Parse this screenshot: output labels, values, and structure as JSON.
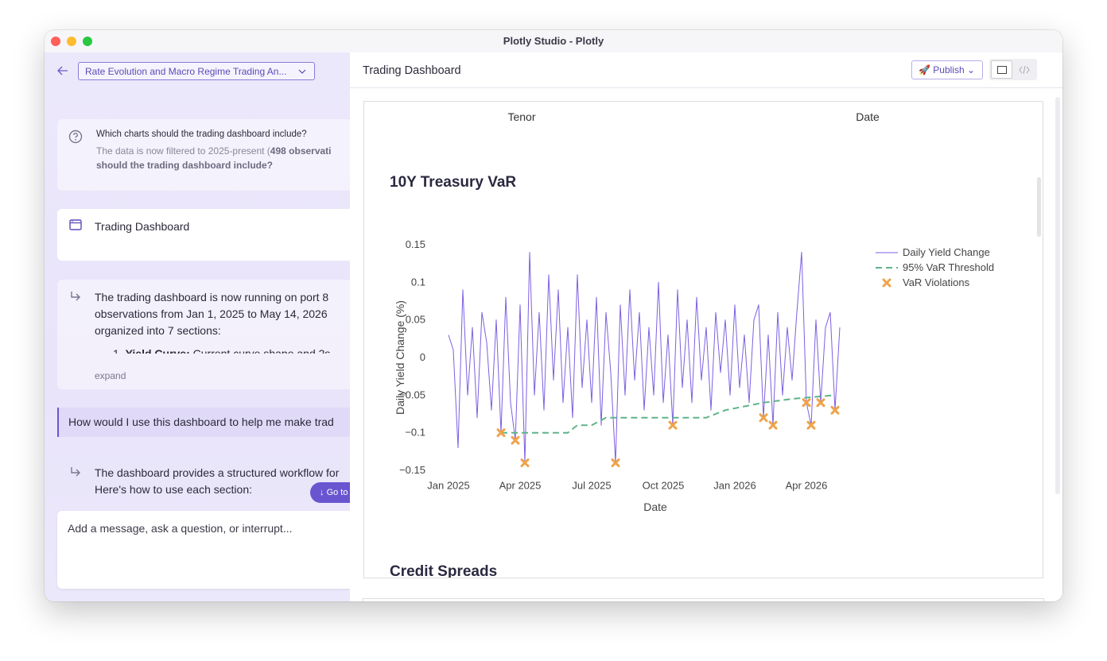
{
  "window": {
    "title": "Plotly Studio - Plotly"
  },
  "sidebar": {
    "project": "Rate Evolution and Macro Regime Trading An...",
    "question": {
      "title": "Which charts should the trading dashboard include?",
      "line1": "The data is now filtered to 2025-present (",
      "line1_bold": "498 observati",
      "line2_bold": "should the trading dashboard include?"
    },
    "artifact": "Trading Dashboard",
    "reply1": {
      "lines": [
        "The trading dashboard is now running on port 8",
        "observations from Jan 1, 2025 to May 14, 2026",
        "organized into 7 sections:"
      ],
      "list_number": "1.",
      "list_bold": "Yield Curve:",
      "list_text": " Current curve shape and 2s",
      "expand": "expand"
    },
    "user_message": "How would I use this dashboard to help me make trad",
    "reply2": [
      "The dashboard provides a structured workflow for",
      "Here's how to use each section:"
    ],
    "go_button": "Go to",
    "input_placeholder": "Add a message, ask a question, or interrupt..."
  },
  "main": {
    "title": "Trading Dashboard",
    "publish": "Publish",
    "filters": [
      "Tenor",
      "Date"
    ],
    "next_section": "Credit Spreads"
  },
  "chart_data": {
    "type": "line",
    "title": "10Y Treasury VaR",
    "x_label": "Date",
    "y_label": "Daily Yield Change (%)",
    "xlim": [
      -0.1,
      16.5
    ],
    "xticks": [
      {
        "value": 0,
        "label": "Jan 2025"
      },
      {
        "value": 3,
        "label": "Apr 2025"
      },
      {
        "value": 6,
        "label": "Jul 2025"
      },
      {
        "value": 9,
        "label": "Oct 2025"
      },
      {
        "value": 12,
        "label": "Jan 2026"
      },
      {
        "value": 15,
        "label": "Apr 2026"
      }
    ],
    "ylim": [
      -0.16,
      0.16
    ],
    "yticks": [
      0.15,
      0.1,
      0.05,
      0,
      {
        "value": -0.05,
        "label": "−0.05"
      },
      {
        "value": -0.1,
        "label": "−0.1"
      },
      {
        "value": -0.15,
        "label": "−0.15"
      }
    ],
    "grid": false,
    "legend": "right",
    "series": [
      {
        "name": "Daily Yield Change",
        "color": "#7d5fe0",
        "mode": "line",
        "x": [
          0,
          0.2,
          0.4,
          0.6,
          0.8,
          1,
          1.2,
          1.4,
          1.6,
          1.8,
          2,
          2.2,
          2.4,
          2.6,
          2.8,
          3,
          3.2,
          3.4,
          3.6,
          3.8,
          4,
          4.2,
          4.4,
          4.6,
          4.8,
          5,
          5.2,
          5.4,
          5.6,
          5.8,
          6,
          6.2,
          6.4,
          6.6,
          6.8,
          7,
          7.2,
          7.4,
          7.6,
          7.8,
          8,
          8.2,
          8.4,
          8.6,
          8.8,
          9,
          9.2,
          9.4,
          9.6,
          9.8,
          10,
          10.2,
          10.4,
          10.6,
          10.8,
          11,
          11.2,
          11.4,
          11.6,
          11.8,
          12,
          12.2,
          12.4,
          12.6,
          12.8,
          13,
          13.2,
          13.4,
          13.6,
          13.8,
          14,
          14.2,
          14.4,
          14.6,
          14.8,
          15,
          15.2,
          15.4,
          15.6,
          15.8,
          16,
          16.2,
          16.4
        ],
        "values": [
          0.03,
          0.01,
          -0.12,
          0.09,
          -0.05,
          0.04,
          -0.08,
          0.06,
          0.02,
          -0.07,
          0.05,
          -0.1,
          0.08,
          -0.06,
          -0.11,
          0.07,
          -0.14,
          0.14,
          -0.05,
          0.06,
          -0.07,
          0.11,
          -0.03,
          0.09,
          -0.06,
          0.04,
          -0.08,
          0.11,
          -0.04,
          0.05,
          -0.06,
          0.08,
          -0.09,
          0.06,
          -0.02,
          -0.14,
          0.07,
          -0.05,
          0.09,
          -0.03,
          0.06,
          -0.07,
          0.04,
          -0.05,
          0.1,
          -0.06,
          0.03,
          -0.09,
          0.09,
          -0.04,
          0.05,
          -0.06,
          0.08,
          -0.03,
          0.04,
          -0.07,
          0.06,
          -0.02,
          0.05,
          -0.05,
          0.07,
          -0.04,
          0.03,
          -0.06,
          0.05,
          0.07,
          -0.08,
          0.03,
          -0.09,
          0.06,
          -0.05,
          0.04,
          -0.03,
          0.06,
          0.14,
          -0.06,
          -0.09,
          0.05,
          -0.06,
          0.04,
          0.06,
          -0.07,
          0.04
        ]
      },
      {
        "name": "95% VaR Threshold",
        "color": "#5fb38a",
        "mode": "dash",
        "x": [
          2.2,
          5,
          5.4,
          6,
          6.6,
          10.8,
          11.6,
          13.2,
          14.4,
          16.2
        ],
        "values": [
          -0.1,
          -0.1,
          -0.09,
          -0.09,
          -0.08,
          -0.08,
          -0.07,
          -0.06,
          -0.055,
          -0.05
        ]
      },
      {
        "name": "VaR Violations",
        "color": "#f0a34a",
        "mode": "markers",
        "x": [
          2.2,
          2.8,
          3.2,
          7,
          9.4,
          13.2,
          13.6,
          15,
          15.2,
          15.6,
          16.2
        ],
        "values": [
          -0.1,
          -0.11,
          -0.14,
          -0.14,
          -0.09,
          -0.08,
          -0.09,
          -0.06,
          -0.09,
          -0.06,
          -0.07
        ]
      }
    ]
  }
}
